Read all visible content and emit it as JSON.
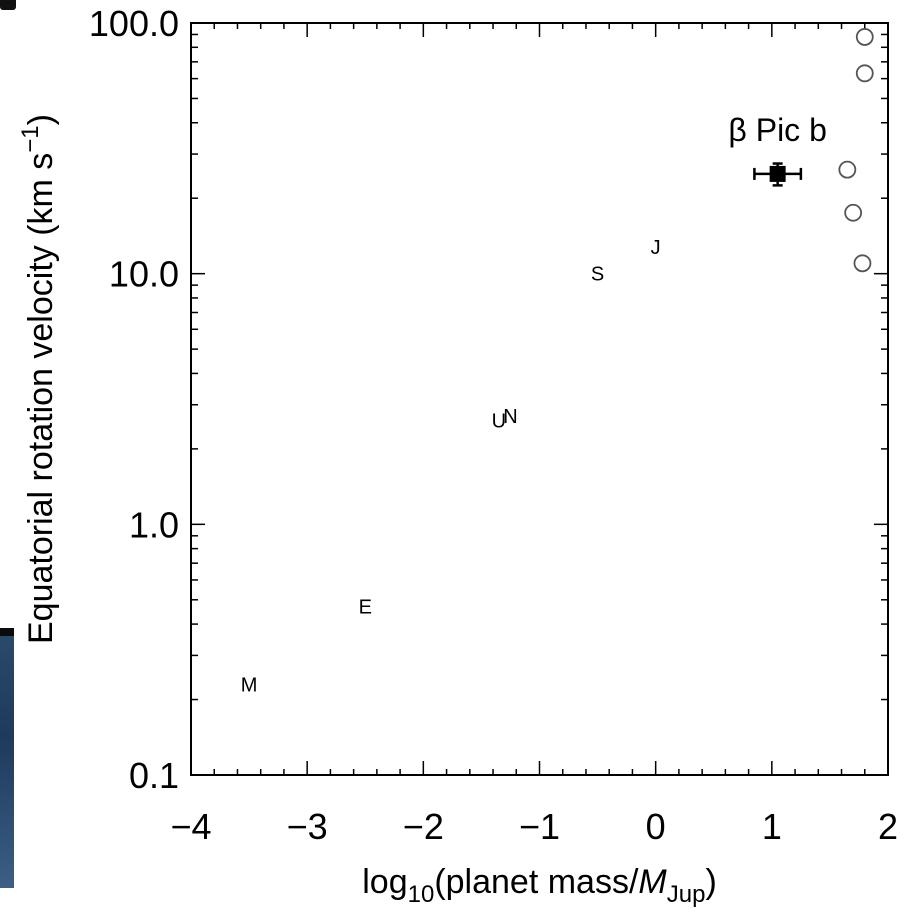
{
  "chart_data": {
    "type": "scatter",
    "xlabel": "log10(planet mass/MJup)",
    "xlabel_parts": {
      "prefix": "log",
      "sub": "10",
      "mid": "(planet mass/",
      "italic": "M",
      "sub2": "Jup",
      "suffix": ")"
    },
    "ylabel": "Equatorial rotation velocity (km s−1)",
    "ylabel_parts": {
      "main": "Equatorial rotation velocity (km s",
      "sup": "−1",
      "suffix": ")"
    },
    "x_scale": "linear",
    "y_scale": "log",
    "xlim": [
      -4,
      2
    ],
    "ylim": [
      0.1,
      100
    ],
    "x_ticks": [
      "−4",
      "−3",
      "−2",
      "−1",
      "0",
      "1",
      "2"
    ],
    "y_ticks": [
      "0.1",
      "1.0",
      "10.0",
      "100.0"
    ],
    "grid": false,
    "series": [
      {
        "marker": "letter",
        "points": [
          {
            "label": "M",
            "x": -3.5,
            "y": 0.23
          },
          {
            "label": "E",
            "x": -2.5,
            "y": 0.47
          },
          {
            "label": "U",
            "x": -1.35,
            "y": 2.6
          },
          {
            "label": "N",
            "x": -1.25,
            "y": 2.7
          },
          {
            "label": "S",
            "x": -0.5,
            "y": 10.0
          },
          {
            "label": "J",
            "x": 0.0,
            "y": 12.8
          }
        ]
      },
      {
        "marker": "open-circle",
        "points": [
          {
            "x": 1.8,
            "y": 88
          },
          {
            "x": 1.8,
            "y": 63
          },
          {
            "x": 1.65,
            "y": 26
          },
          {
            "x": 1.7,
            "y": 17.5
          },
          {
            "x": 1.78,
            "y": 11
          }
        ]
      },
      {
        "marker": "filled-square",
        "points": [
          {
            "x": 1.05,
            "y": 25,
            "xerr": 0.2,
            "yerr": 2.5
          }
        ]
      }
    ],
    "annotations": [
      {
        "text": "β Pic b",
        "x": 1.05,
        "y": 37
      }
    ]
  }
}
